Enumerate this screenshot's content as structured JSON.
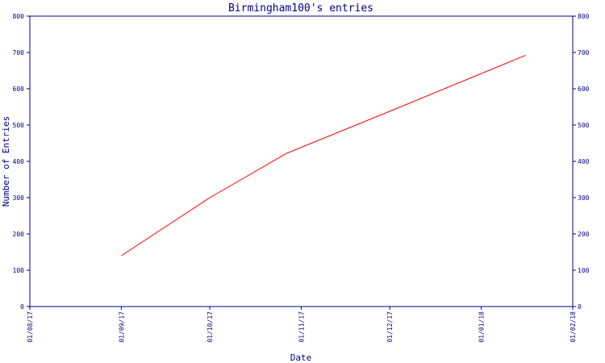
{
  "chart_data": {
    "type": "line",
    "title": "Birmingham100's entries",
    "xlabel": "Date",
    "ylabel": "Number of Entries",
    "ylim": [
      0,
      800
    ],
    "y_ticks": [
      "0",
      "100",
      "200",
      "300",
      "400",
      "500",
      "600",
      "700",
      "800"
    ],
    "y_ticks_right": [
      "0",
      "100",
      "200",
      "300",
      "400",
      "500",
      "600",
      "700",
      "800"
    ],
    "xlim": [
      "2017-08-01",
      "2018-02-01"
    ],
    "x_ticks": [
      {
        "date": "2017-08-01",
        "label": "01/08/17"
      },
      {
        "date": "2017-09-01",
        "label": "01/09/17"
      },
      {
        "date": "2017-10-01",
        "label": "01/10/17"
      },
      {
        "date": "2017-11-01",
        "label": "01/11/17"
      },
      {
        "date": "2017-12-01",
        "label": "01/12/17"
      },
      {
        "date": "2018-01-01",
        "label": "01/01/18"
      },
      {
        "date": "2018-02-01",
        "label": "01/02/18"
      }
    ],
    "series": [
      {
        "color": "#ff0000",
        "points": [
          {
            "x": "2017-09-01",
            "y": 140
          },
          {
            "x": "2017-10-01",
            "y": 300
          },
          {
            "x": "2017-10-27",
            "y": 422
          },
          {
            "x": "2017-12-01",
            "y": 538
          },
          {
            "x": "2018-01-16",
            "y": 692
          }
        ]
      }
    ],
    "colors": {
      "axis": "#000080",
      "text": "#000080",
      "line": "#ff0000",
      "background": "#ffffff"
    },
    "grid": false
  }
}
